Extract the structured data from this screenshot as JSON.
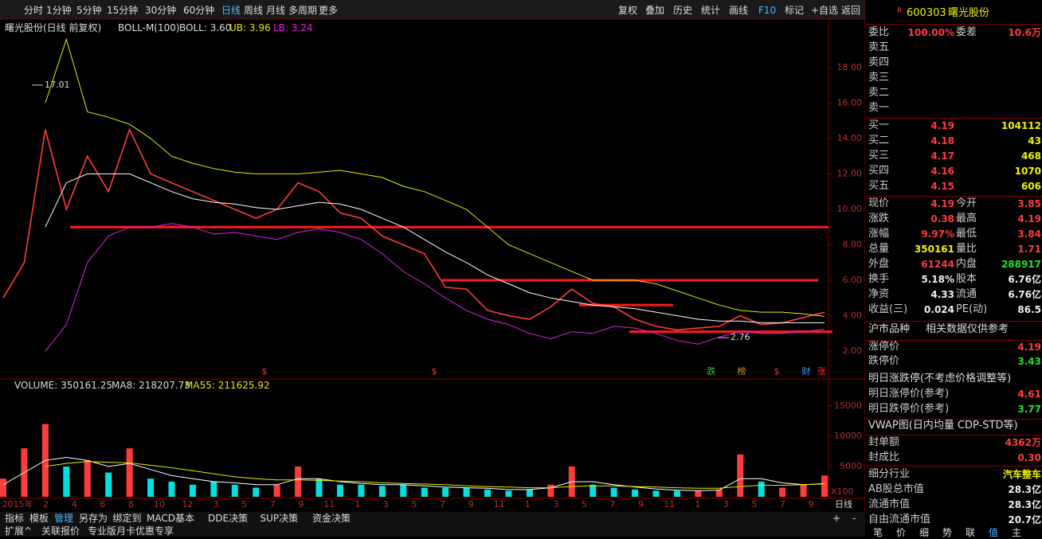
{
  "toolbar": {
    "tabs": [
      "分时",
      "1分钟",
      "5分钟",
      "15分钟",
      "30分钟",
      "60分钟",
      "日线",
      "周线",
      "月线",
      "多周期",
      "更多"
    ],
    "buttons": [
      "复权",
      "叠加",
      "历史",
      "统计",
      "画线",
      "F10",
      "标记",
      "+自选",
      "返回"
    ]
  },
  "price_chart": {
    "type": "line",
    "title": "曙光股份(日线 前复权)",
    "indicator": "BOLL-M(100)",
    "legend": [
      "BOLL: 3.60",
      "UB: 3.96",
      "LB: 3.24"
    ],
    "ylim": [
      0.7,
      20.6
    ],
    "yticks": [
      {
        "value": 2,
        "label": "2.00"
      },
      {
        "value": 4,
        "label": "4.00"
      },
      {
        "value": 6,
        "label": "6.00"
      },
      {
        "value": 8,
        "label": "8.00"
      },
      {
        "value": 10,
        "label": "10.00"
      },
      {
        "value": 12,
        "label": "12.00"
      },
      {
        "value": 14,
        "label": "14.00"
      },
      {
        "value": 16,
        "label": "16.00"
      },
      {
        "value": 18,
        "label": "18.00"
      }
    ],
    "series": [
      {
        "color": "#ff3b3b",
        "values": [
          5.0,
          7.0,
          14.5,
          10.0,
          13.0,
          11.0,
          14.5,
          12.0,
          11.5,
          11.0,
          10.5,
          10.0,
          9.5,
          10.0,
          11.5,
          11.0,
          9.8,
          9.5,
          8.5,
          8.0,
          7.5,
          5.6,
          5.5,
          4.3,
          4.0,
          3.8,
          4.5,
          5.5,
          4.7,
          4.5,
          3.8,
          3.4,
          3.2,
          3.3,
          3.4,
          4.0,
          3.5,
          3.6,
          3.9,
          4.19
        ]
      },
      {
        "color": "#e8e800",
        "values": [
          null,
          null,
          16.0,
          19.6,
          15.5,
          15.2,
          14.8,
          14.0,
          13.0,
          12.6,
          12.3,
          12.1,
          12.0,
          12.0,
          12.0,
          12.1,
          12.2,
          12.0,
          11.8,
          11.3,
          11.0,
          10.5,
          10.0,
          9.0,
          8.0,
          7.5,
          7.0,
          6.5,
          6.0,
          6.0,
          6.0,
          5.8,
          5.4,
          5.0,
          4.6,
          4.3,
          4.2,
          4.2,
          4.1,
          3.96
        ]
      },
      {
        "color": "#ffffff",
        "values": [
          null,
          null,
          9.0,
          11.5,
          12.0,
          12.0,
          12.0,
          11.5,
          11.0,
          10.6,
          10.4,
          10.3,
          10.1,
          10.0,
          10.2,
          10.4,
          10.3,
          10.0,
          9.5,
          9.0,
          8.3,
          7.6,
          7.0,
          6.3,
          5.8,
          5.3,
          5.0,
          4.8,
          4.6,
          4.5,
          4.4,
          4.2,
          4.0,
          3.8,
          3.7,
          3.7,
          3.6,
          3.6,
          3.6,
          3.6
        ]
      },
      {
        "color": "#e020e0",
        "values": [
          null,
          null,
          2.0,
          3.5,
          7.0,
          8.5,
          9.0,
          9.0,
          9.2,
          9.0,
          8.6,
          8.7,
          8.5,
          8.3,
          8.7,
          8.9,
          8.7,
          8.3,
          7.5,
          6.5,
          5.8,
          5.0,
          4.3,
          3.8,
          3.5,
          3.0,
          2.7,
          3.1,
          3.0,
          3.4,
          3.3,
          3.0,
          2.6,
          2.4,
          2.8,
          3.1,
          3.0,
          3.0,
          3.1,
          3.24
        ]
      }
    ],
    "levels": [
      9.0,
      6.0,
      4.6,
      3.1
    ],
    "annotations": [
      {
        "text": "17.01",
        "value": 17.01
      },
      {
        "text": "2.76",
        "value": 2.76
      }
    ],
    "event_markers": [
      "$",
      "$",
      "跌",
      "榜",
      "$",
      "财",
      "涨"
    ]
  },
  "volume_chart": {
    "type": "bar",
    "legend": [
      "VOLUME: 350161.25",
      "MA8: 218207.73",
      "MA55: 211625.92"
    ],
    "unit_label": "X100",
    "ylim": [
      0,
      17600
    ],
    "yticks": [
      5000,
      10000,
      15000
    ],
    "values": [
      3000,
      8000,
      12000,
      5000,
      6000,
      4000,
      8000,
      3000,
      2500,
      2000,
      2500,
      2000,
      1500,
      2000,
      5000,
      3000,
      2000,
      2000,
      1800,
      2000,
      1500,
      1500,
      1500,
      1200,
      1000,
      1200,
      2000,
      5000,
      2000,
      1500,
      1200,
      1000,
      1000,
      1000,
      1200,
      7000,
      2500,
      1500,
      2000,
      3500
    ],
    "ma": [
      {
        "color": "#ffffff",
        "values": [
          2000,
          4000,
          6000,
          6500,
          6000,
          5000,
          5500,
          4500,
          3500,
          3000,
          2500,
          2300,
          2000,
          2000,
          3000,
          3000,
          2500,
          2200,
          2000,
          2000,
          1800,
          1600,
          1500,
          1400,
          1200,
          1200,
          1500,
          2500,
          2500,
          2000,
          1600,
          1300,
          1100,
          1000,
          1100,
          3000,
          3000,
          2300,
          2000,
          2182
        ]
      },
      {
        "color": "#e8e800",
        "values": [
          null,
          null,
          5000,
          5500,
          5800,
          5700,
          5600,
          5200,
          4800,
          4300,
          3800,
          3300,
          3000,
          2800,
          2800,
          2700,
          2600,
          2500,
          2300,
          2200,
          2100,
          2000,
          1800,
          1700,
          1600,
          1500,
          1500,
          1700,
          1800,
          1800,
          1700,
          1600,
          1500,
          1400,
          1400,
          1700,
          1900,
          1900,
          2000,
          2116
        ]
      }
    ]
  },
  "x_axis": {
    "labels": [
      "2015年",
      "2",
      "4",
      "6",
      "8",
      "10",
      "12",
      "3",
      "5",
      "7",
      "9",
      "11",
      "1",
      "3",
      "5",
      "7",
      "9",
      "11",
      "1",
      "3",
      "5",
      "7",
      "9",
      "11",
      "1",
      "3",
      "5",
      "7",
      "9"
    ],
    "period": "日线"
  },
  "bottom_toolbar": {
    "items": [
      "指标",
      "模板",
      "管理",
      "另存为",
      "绑定到",
      "MACD基本",
      "DDE决策",
      "SUP决策",
      "资金决策"
    ],
    "zoom": [
      "+",
      "-"
    ]
  },
  "status_bar": {
    "items": [
      "扩展^",
      "关联报价",
      "专业版月卡优惠专享"
    ]
  },
  "quote_panel": {
    "flag": "R",
    "code": "600303",
    "name": "曙光股份",
    "ratio": [
      "委比",
      "100.00%",
      "委差",
      "10.6万"
    ],
    "asks": [
      "卖五",
      "卖四",
      "卖三",
      "卖二",
      "卖一"
    ],
    "bids": [
      [
        "买一",
        "4.19",
        "104112"
      ],
      [
        "买二",
        "4.18",
        "43"
      ],
      [
        "买三",
        "4.17",
        "468"
      ],
      [
        "买四",
        "4.16",
        "1070"
      ],
      [
        "买五",
        "4.15",
        "606"
      ]
    ],
    "quotes": [
      [
        "现价",
        "4.19",
        "今开",
        "3.85"
      ],
      [
        "涨跌",
        "0.38",
        "最高",
        "4.19"
      ],
      [
        "涨幅",
        "9.97%",
        "最低",
        "3.84"
      ],
      [
        "总量",
        "350161",
        "量比",
        "1.71"
      ],
      [
        "外盘",
        "61244",
        "内盘",
        "288917"
      ],
      [
        "换手",
        "5.18%",
        "股本",
        "6.76亿"
      ],
      [
        "净资",
        "4.33",
        "流通",
        "6.76亿"
      ],
      [
        "收益(三)",
        "0.024",
        "PE(动)",
        "86.5"
      ]
    ],
    "market": [
      "沪市品种",
      "相关数据仅供参考"
    ],
    "limits": [
      [
        "涨停价",
        "4.19"
      ],
      [
        "跌停价",
        "3.43"
      ]
    ],
    "next_day_title": "明日涨跌停(不考虑价格调整等)",
    "next_day": [
      [
        "明日涨停价(参考)",
        "4.61"
      ],
      [
        "明日跌停价(参考)",
        "3.77"
      ]
    ],
    "vwap_title": "VWAP图(日内均量 CDP-STD等)",
    "seal": [
      [
        "封单额",
        "4362万"
      ],
      [
        "封成比",
        "0.30"
      ]
    ],
    "industry": [
      "细分行业",
      "汽车整车"
    ],
    "caps": [
      [
        "AB股总市值",
        "28.3亿"
      ],
      [
        "流通市值",
        "28.3亿"
      ],
      [
        "自由流通市值",
        "20.7亿"
      ]
    ],
    "tabs": [
      "笔",
      "价",
      "细",
      "势",
      "联",
      "值",
      "主"
    ]
  }
}
